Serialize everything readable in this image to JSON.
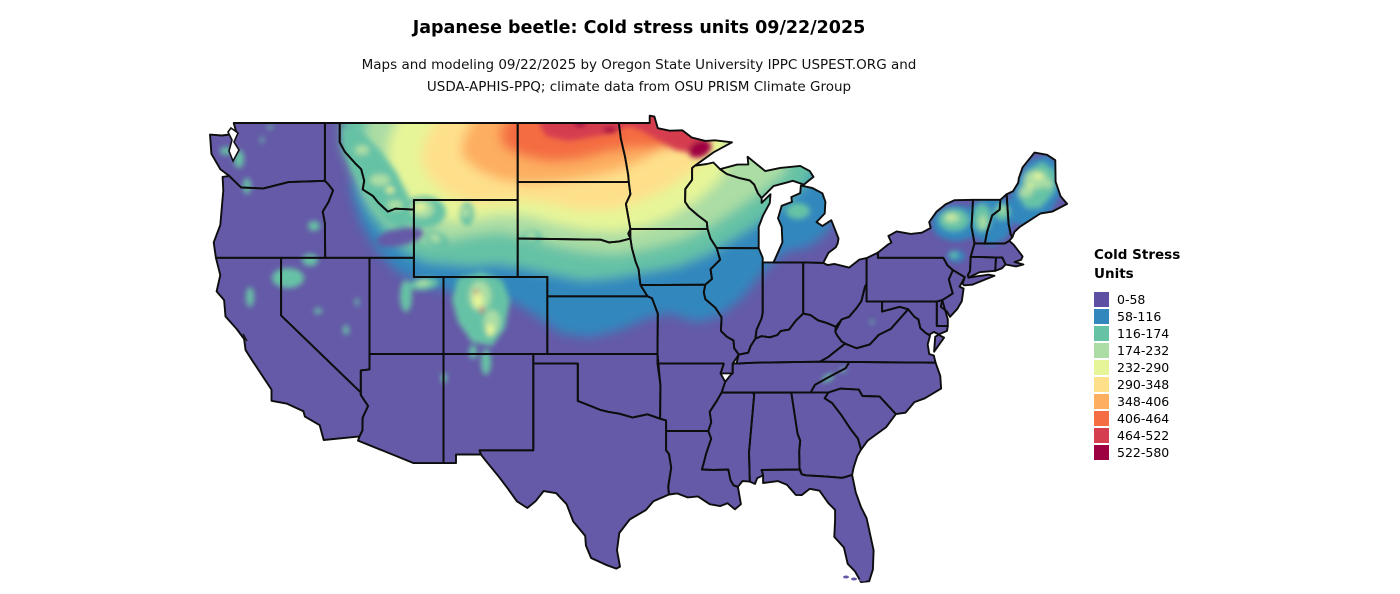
{
  "header": {
    "title": "Japanese beetle: Cold stress units 09/22/2025",
    "subtitle_line1": "Maps and modeling 09/22/2025 by Oregon State University IPPC USPEST.ORG and",
    "subtitle_line2": "USDA-APHIS-PPQ; climate data from OSU PRISM Climate Group"
  },
  "legend": {
    "title_line1": "Cold Stress",
    "title_line2": "Units",
    "items": [
      {
        "label": "0-58",
        "color": "#5e4fa2"
      },
      {
        "label": "58-116",
        "color": "#3288bd"
      },
      {
        "label": "116-174",
        "color": "#66c2a5"
      },
      {
        "label": "174-232",
        "color": "#abdda4"
      },
      {
        "label": "232-290",
        "color": "#e6f598"
      },
      {
        "label": "290-348",
        "color": "#fee08b"
      },
      {
        "label": "348-406",
        "color": "#fdae61"
      },
      {
        "label": "406-464",
        "color": "#f46d43"
      },
      {
        "label": "464-522",
        "color": "#d53e4f"
      },
      {
        "label": "522-580",
        "color": "#9e0142"
      }
    ]
  },
  "map": {
    "base_color": "#655aa8"
  }
}
